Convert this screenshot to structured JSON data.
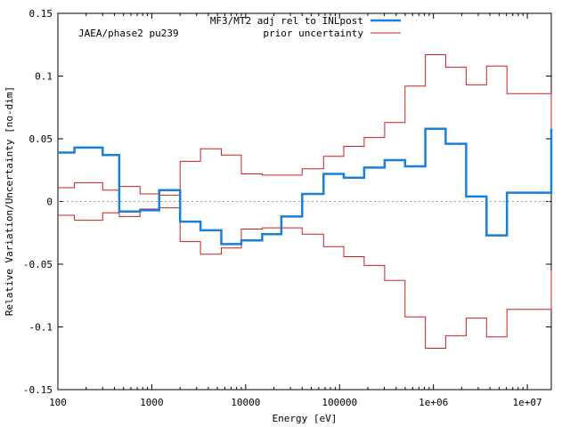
{
  "chart_data": {
    "type": "line",
    "title": "",
    "annotation": "JAEA/phase2 pu239",
    "xlabel": "Energy [eV]",
    "ylabel": "Relative Variation/Uncertainty [no-dim]",
    "xscale": "log",
    "xlim": [
      100,
      18000000
    ],
    "ylim": [
      -0.15,
      0.15
    ],
    "x_tick_values": [
      100,
      1000,
      10000,
      100000,
      1000000,
      10000000
    ],
    "x_tick_labels": [
      "100",
      "1000",
      "10000",
      "100000",
      "1e+06",
      "1e+07"
    ],
    "y_tick_values": [
      -0.15,
      -0.1,
      -0.05,
      0,
      0.05,
      0.1,
      0.15
    ],
    "y_tick_labels": [
      "-0.15",
      "-0.1",
      "-0.05",
      "0",
      "0.05",
      "0.1",
      "0.15"
    ],
    "legend_position": "top-right",
    "zero_line": true,
    "bin_edges": [
      100,
      150,
      300,
      450,
      750,
      1200,
      2000,
      3300,
      5500,
      9000,
      15000,
      24000,
      40000,
      67500,
      111000,
      183000,
      302000,
      498000,
      821000,
      1350000,
      2230000,
      3680000,
      6070000,
      18000000
    ],
    "series": [
      {
        "name": "MF3/MT2 adj rel to INLpost",
        "color": "#1a7fd8",
        "style": "steps",
        "values": [
          0.039,
          0.043,
          0.037,
          -0.008,
          -0.007,
          0.009,
          -0.016,
          -0.023,
          -0.034,
          -0.031,
          -0.026,
          -0.012,
          0.006,
          0.022,
          0.019,
          0.027,
          0.033,
          0.028,
          0.058,
          0.046,
          0.004,
          -0.027,
          0.007,
          0.058
        ]
      },
      {
        "name": "prior uncertainty",
        "color": "#cc1f1f",
        "style": "steps-symmetric",
        "values": [
          0.011,
          0.015,
          0.009,
          0.012,
          0.006,
          0.005,
          0.032,
          0.042,
          0.037,
          0.022,
          0.021,
          0.021,
          0.026,
          0.036,
          0.044,
          0.051,
          0.063,
          0.092,
          0.117,
          0.107,
          0.093,
          0.108,
          0.086,
          0.055
        ]
      }
    ]
  }
}
